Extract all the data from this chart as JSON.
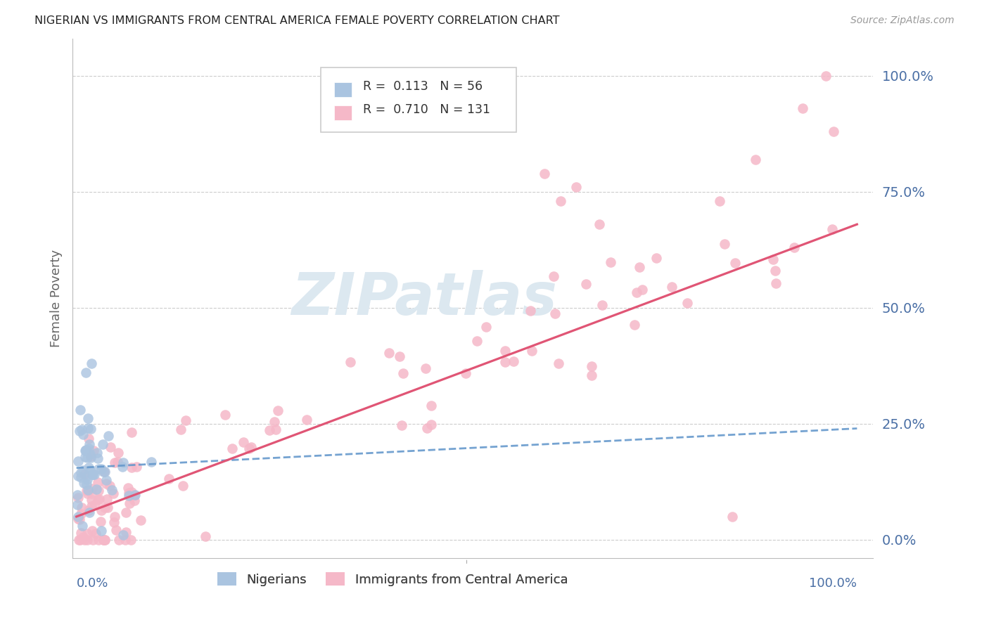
{
  "title": "NIGERIAN VS IMMIGRANTS FROM CENTRAL AMERICA FEMALE POVERTY CORRELATION CHART",
  "source": "Source: ZipAtlas.com",
  "ylabel": "Female Poverty",
  "legend_label1": "Nigerians",
  "legend_label2": "Immigrants from Central America",
  "R1": 0.113,
  "N1": 56,
  "R2": 0.71,
  "N2": 131,
  "color_blue": "#aac4e0",
  "color_pink": "#f5b8c8",
  "line_blue": "#6699cc",
  "line_pink": "#e05575",
  "axis_label_color": "#4a6fa5",
  "grid_color": "#cccccc",
  "watermark_color": "#dce8f0",
  "ylim_low": -0.04,
  "ylim_high": 1.08,
  "xlim_low": -0.005,
  "xlim_high": 1.02,
  "nig_trendline_x": [
    0.0,
    1.0
  ],
  "nig_trendline_y": [
    0.155,
    0.24
  ],
  "ca_trendline_x": [
    0.0,
    1.0
  ],
  "ca_trendline_y": [
    0.05,
    0.68
  ]
}
